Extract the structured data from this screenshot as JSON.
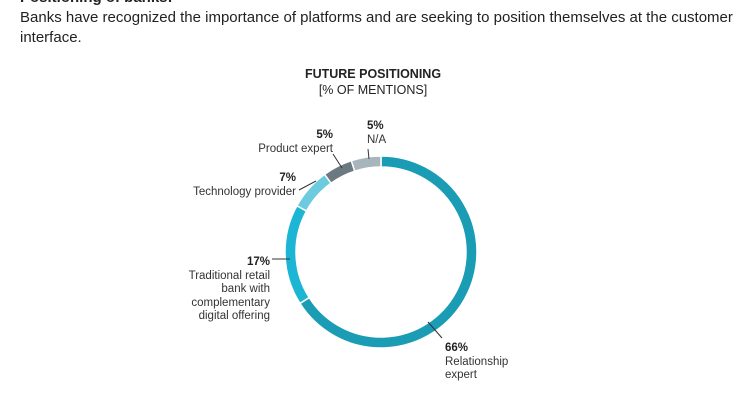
{
  "header": {
    "title": "Positioning of banks:",
    "text": "Banks have recognized the importance of platforms and are seeking to position themselves at the customer interface."
  },
  "chart_data": {
    "type": "donut",
    "title": "FUTURE POSITIONING",
    "subtitle": "[% OF MENTIONS]",
    "categories": [
      "Relationship expert",
      "Traditional retail bank with complementary digital offering",
      "Technology provider",
      "Product expert",
      "N/A"
    ],
    "values": [
      66,
      17,
      7,
      5,
      5
    ],
    "value_labels": [
      "66%",
      "17%",
      "7%",
      "5%",
      "5%"
    ],
    "colors": [
      "#1a9cb4",
      "#1cb5d3",
      "#6dcbe0",
      "#6b7980",
      "#a8b5bc"
    ]
  }
}
